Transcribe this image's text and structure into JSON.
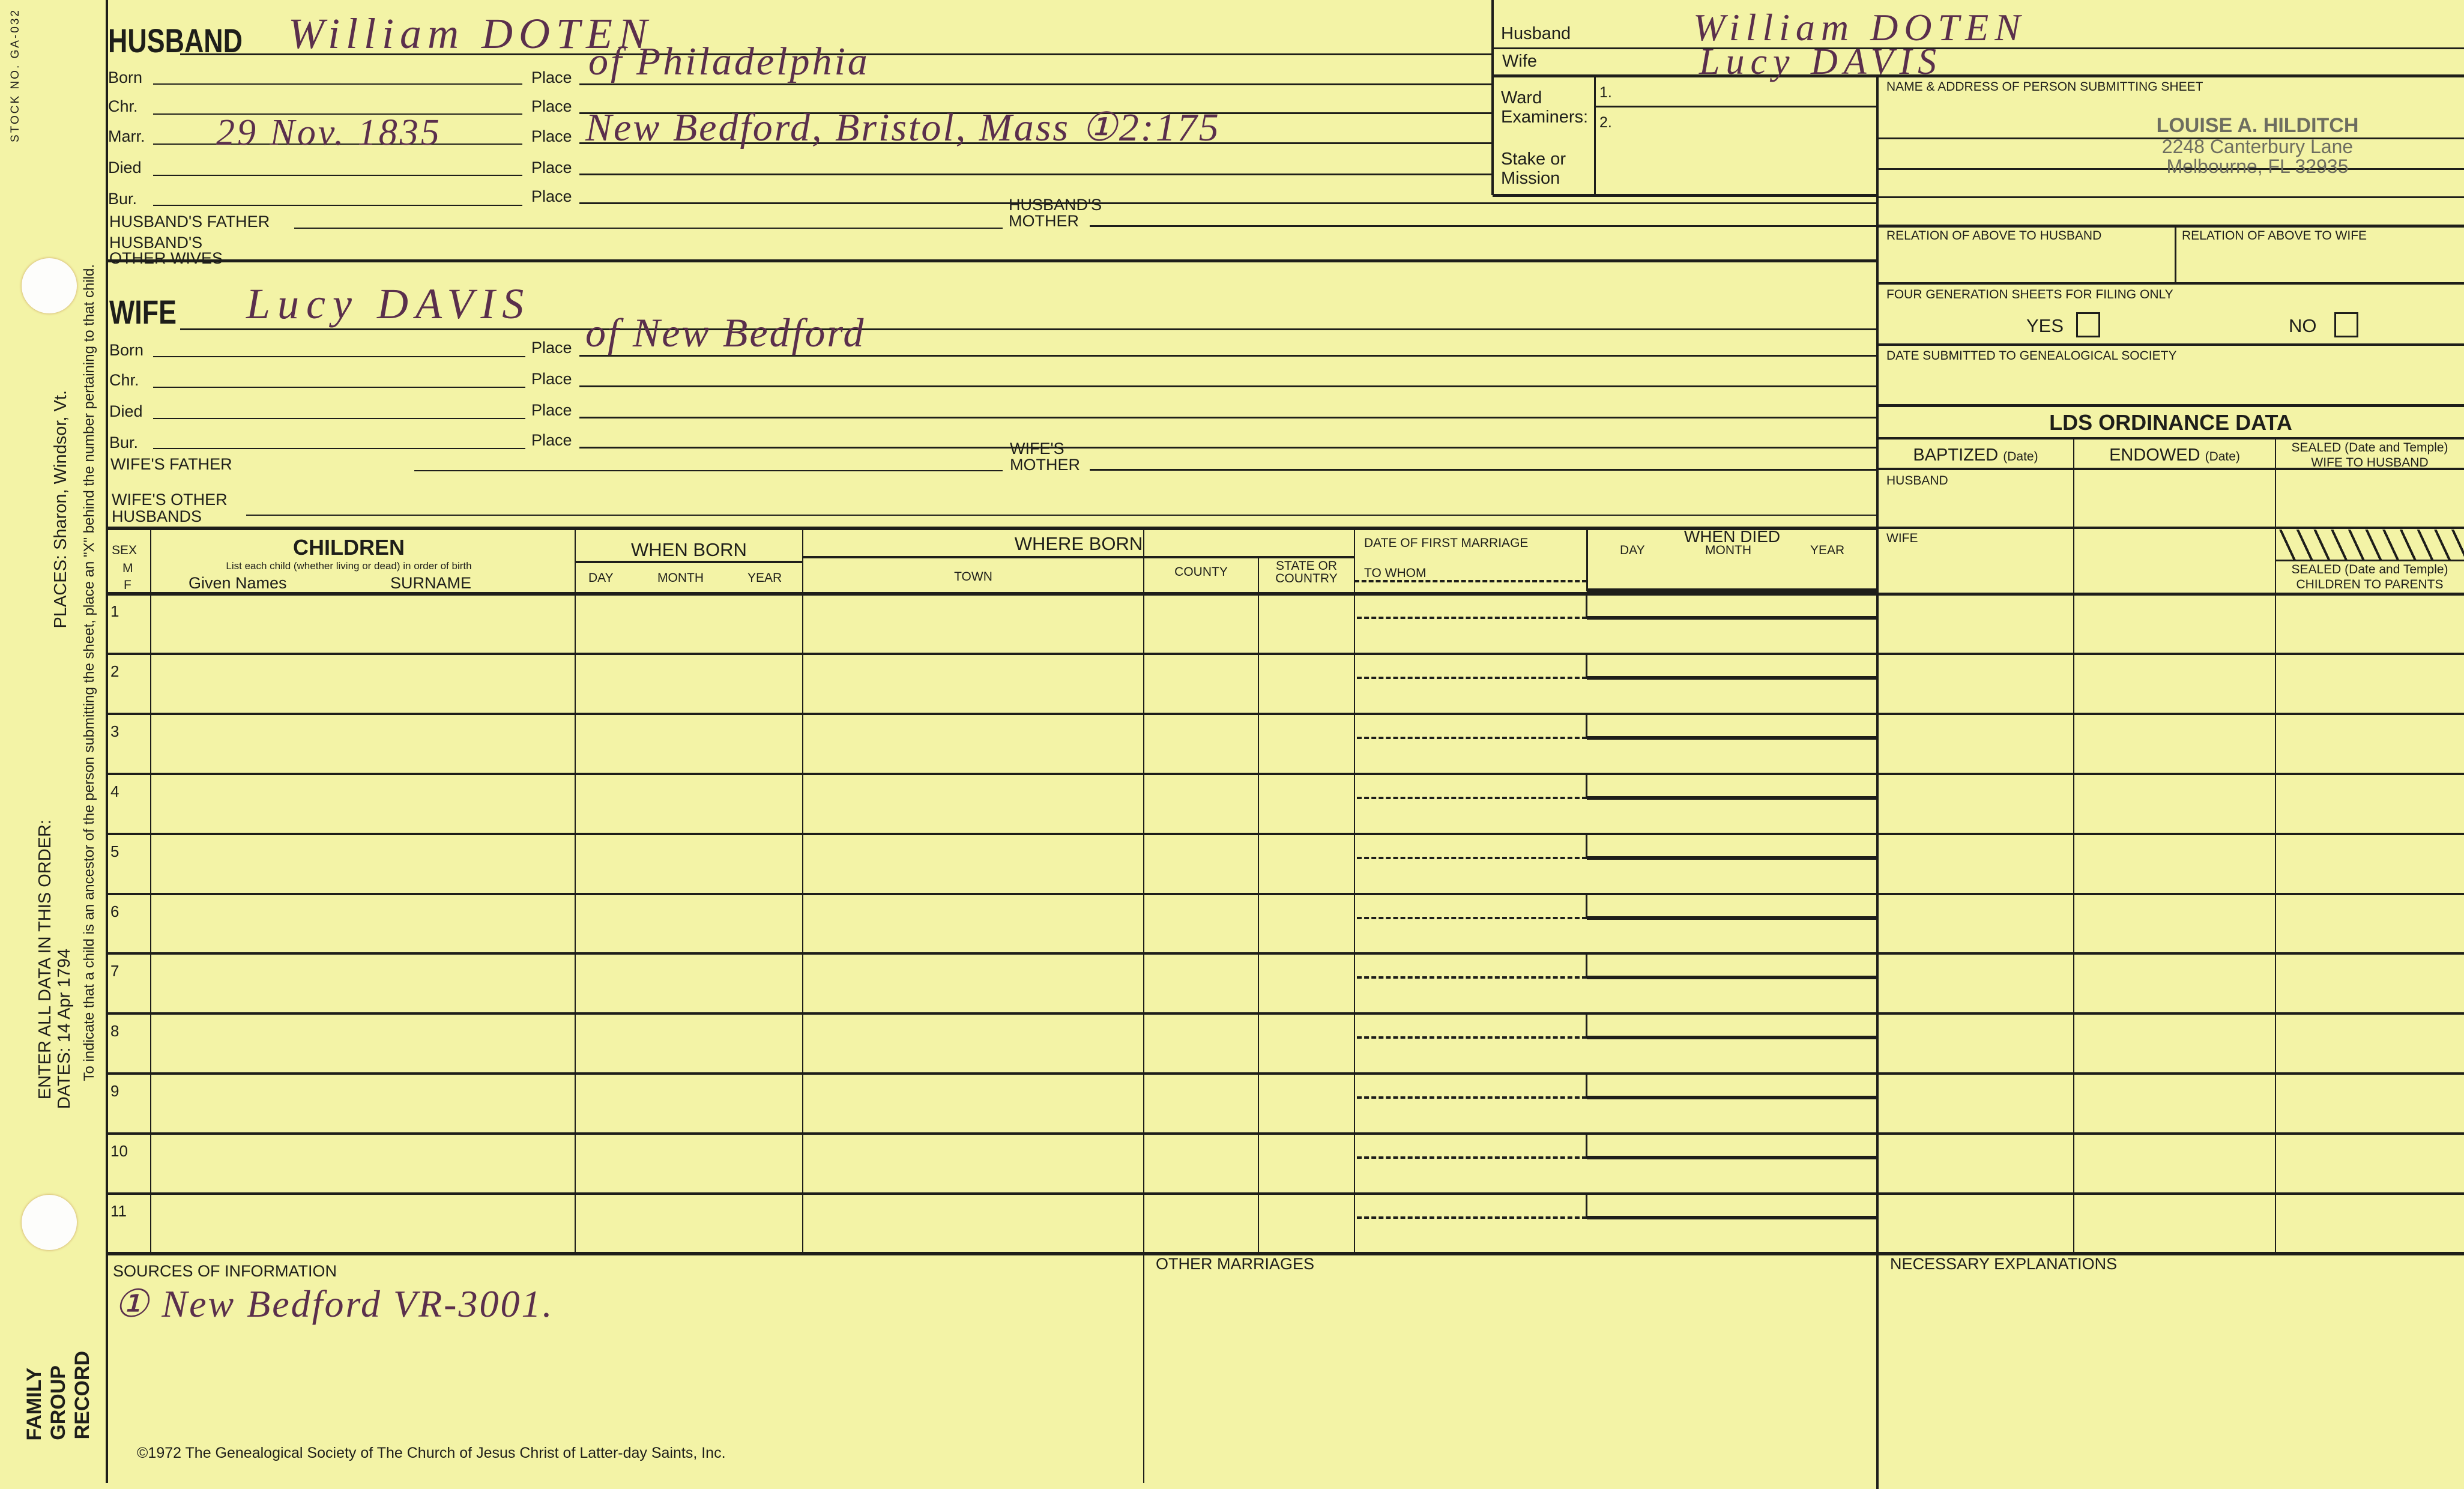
{
  "left_margin": {
    "stock_no": "STOCK NO. GA-032",
    "places": "PLACES: Sharon, Windsor, Vt.",
    "ancestor_note": "To indicate that a child is an ancestor of the person submitting the sheet, place an \"X\" behind the number pertaining to that child.",
    "enter_order": "ENTER ALL DATA IN THIS ORDER:",
    "dates": "DATES: 14 Apr 1794",
    "form_title_1": "FAMILY",
    "form_title_2": "GROUP",
    "form_title_3": "RECORD"
  },
  "labels": {
    "place": "Place",
    "born": "Born",
    "chr": "Chr.",
    "marr": "Marr.",
    "died": "Died",
    "bur": "Bur."
  },
  "husband": {
    "heading": "HUSBAND",
    "name": "William DOTEN",
    "born_place": "of Philadelphia",
    "marr_date": "29 Nov. 1835",
    "marr_place": "New Bedford, Bristol, Mass ①2:175",
    "father_label": "HUSBAND'S FATHER",
    "mother_label_1": "HUSBAND'S",
    "mother_label_2": "MOTHER",
    "other_label_1": "HUSBAND'S",
    "other_label_2": "OTHER WIVES"
  },
  "wife": {
    "heading": "WIFE",
    "name": "Lucy DAVIS",
    "born_place": "of New Bedford",
    "father_label": "WIFE'S FATHER",
    "mother_label_1": "WIFE'S",
    "mother_label_2": "MOTHER",
    "other_label_1": "WIFE'S OTHER",
    "other_label_2": "HUSBANDS"
  },
  "header_box": {
    "husband_label": "Husband",
    "husband_value": "William DOTEN",
    "wife_label": "Wife",
    "wife_value": "Lucy DAVIS",
    "ward_label_1": "Ward",
    "ward_label_2": "Examiners:",
    "ward_1": "1.",
    "ward_2": "2.",
    "stake_label_1": "Stake or",
    "stake_label_2": "Mission"
  },
  "submitter": {
    "label": "NAME & ADDRESS OF PERSON SUBMITTING SHEET",
    "stamp": [
      "LOUISE A. HILDITCH",
      "2248 Canterbury Lane",
      "Melbourne, FL 32935"
    ],
    "relation_husband": "RELATION OF ABOVE TO HUSBAND",
    "relation_wife": "RELATION OF ABOVE TO WIFE",
    "four_gen": "FOUR GENERATION SHEETS FOR FILING ONLY",
    "yes": "YES",
    "no": "NO",
    "yes_checked": false,
    "no_checked": false,
    "date_submitted": "DATE SUBMITTED TO GENEALOGICAL SOCIETY"
  },
  "lds": {
    "title": "LDS ORDINANCE DATA",
    "baptized": "BAPTIZED",
    "endowed": "ENDOWED",
    "date_note": "(Date)",
    "sealed_wife_1": "SEALED (Date and Temple)",
    "sealed_wife_2": "WIFE TO HUSBAND",
    "husband": "HUSBAND",
    "wife": "WIFE",
    "sealed_children_1": "SEALED (Date and Temple)",
    "sealed_children_2": "CHILDREN TO PARENTS"
  },
  "children": {
    "sex": "SEX",
    "m": "M",
    "f": "F",
    "title": "CHILDREN",
    "instruction": "List each child (whether living or dead) in order of birth",
    "given_names": "Given Names",
    "surname": "SURNAME",
    "when_born": "WHEN BORN",
    "day": "DAY",
    "month": "MONTH",
    "year": "YEAR",
    "where_born": "WHERE BORN",
    "town": "TOWN",
    "county": "COUNTY",
    "state_1": "STATE OR",
    "state_2": "COUNTRY",
    "first_marriage": "DATE OF FIRST MARRIAGE",
    "to_whom": "TO WHOM",
    "when_died": "WHEN DIED",
    "rows": [
      "1",
      "2",
      "3",
      "4",
      "5",
      "6",
      "7",
      "8",
      "9",
      "10",
      "11"
    ]
  },
  "footer": {
    "sources_label": "SOURCES OF INFORMATION",
    "sources_value": "① New Bedford VR-3001.",
    "other_marriages": "OTHER MARRIAGES",
    "necessary": "NECESSARY EXPLANATIONS",
    "copyright": "©1972 The Genealogical Society of The Church of Jesus Christ of Latter-day Saints, Inc."
  },
  "colors": {
    "paper": "#f3f3a6",
    "ink": "#1e1e1a",
    "handwriting": "#5a2f4c",
    "stamp": "#6d6d60"
  }
}
